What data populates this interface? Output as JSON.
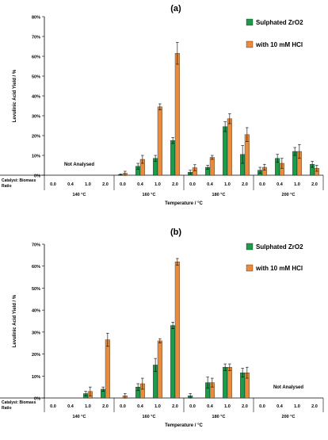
{
  "chart_data": [
    {
      "type": "bar",
      "panel_label": "(a)",
      "ylabel": "Levulinic Acid Yield / %",
      "xlabel": "Temperature / °C",
      "ylim": [
        0,
        80
      ],
      "yticks": [
        "0%",
        "10%",
        "20%",
        "30%",
        "40%",
        "50%",
        "60%",
        "70%",
        "80%"
      ],
      "ratio_label_line1": "Catalyst: Biomass",
      "ratio_label_line2": "Ratio",
      "ratios": [
        "0.0",
        "0.4",
        "1.0",
        "2.0"
      ],
      "temperatures": [
        "140 °C",
        "160 °C",
        "180 °C",
        "200 °C"
      ],
      "legend_position": "top-right",
      "note_text": "Not Analysed",
      "note_group": 0,
      "series": [
        {
          "name": "Sulphated ZrO2",
          "color": "#1f9a4a",
          "values": [
            null,
            null,
            null,
            null,
            0.3,
            4.5,
            8.5,
            17.5,
            1.5,
            4.0,
            24.5,
            10.5,
            2.5,
            8.5,
            12.0,
            5.5
          ],
          "errors": [
            0,
            0,
            0,
            0,
            0.3,
            1.5,
            1.5,
            1.5,
            1.0,
            1.0,
            2.5,
            4.5,
            1.5,
            2.0,
            2.0,
            1.5
          ]
        },
        {
          "name": "with 10 mM HCl",
          "color": "#ea8a3c",
          "values": [
            null,
            null,
            null,
            null,
            1.0,
            8.0,
            34.5,
            61.5,
            3.8,
            9.0,
            28.5,
            20.5,
            4.0,
            6.0,
            12.0,
            3.5
          ],
          "errors": [
            0,
            0,
            0,
            0,
            1.0,
            2.0,
            1.5,
            5.5,
            1.5,
            1.0,
            2.5,
            3.5,
            1.5,
            2.5,
            3.5,
            1.5
          ]
        }
      ]
    },
    {
      "type": "bar",
      "panel_label": "(b)",
      "ylabel": "Levulinic Acid Yield / %",
      "xlabel": "Temperature / °C",
      "ylim": [
        0,
        70
      ],
      "yticks": [
        "0%",
        "10%",
        "20%",
        "30%",
        "40%",
        "50%",
        "60%",
        "70%"
      ],
      "ratio_label_line1": "Catalyst: Biomass",
      "ratio_label_line2": "Ratio",
      "ratios": [
        "0.0",
        "0.4",
        "1.0",
        "2.0"
      ],
      "temperatures": [
        "140 °C",
        "160 °C",
        "180 °C",
        "200 °C"
      ],
      "legend_position": "top-right",
      "note_text": "Not Analysed",
      "note_group": 3,
      "series": [
        {
          "name": "Sulphated ZrO2",
          "color": "#1f9a4a",
          "values": [
            null,
            null,
            2.0,
            4.0,
            null,
            5.0,
            15.0,
            33.0,
            1.0,
            7.0,
            14.0,
            11.5,
            null,
            null,
            null,
            null
          ],
          "errors": [
            0,
            0,
            1.0,
            1.0,
            0,
            1.5,
            3.0,
            1.5,
            1.0,
            2.5,
            1.5,
            2.0,
            0,
            0,
            0,
            0
          ]
        },
        {
          "name": "with 10 mM HCl",
          "color": "#ea8a3c",
          "values": [
            null,
            null,
            3.0,
            26.5,
            1.0,
            6.5,
            26.0,
            62.0,
            null,
            7.0,
            14.0,
            11.5,
            null,
            null,
            null,
            null
          ],
          "errors": [
            0,
            0,
            2.0,
            3.0,
            1.0,
            2.5,
            1.0,
            1.5,
            0,
            2.0,
            1.5,
            2.5,
            0,
            0,
            0,
            0
          ]
        }
      ]
    }
  ]
}
